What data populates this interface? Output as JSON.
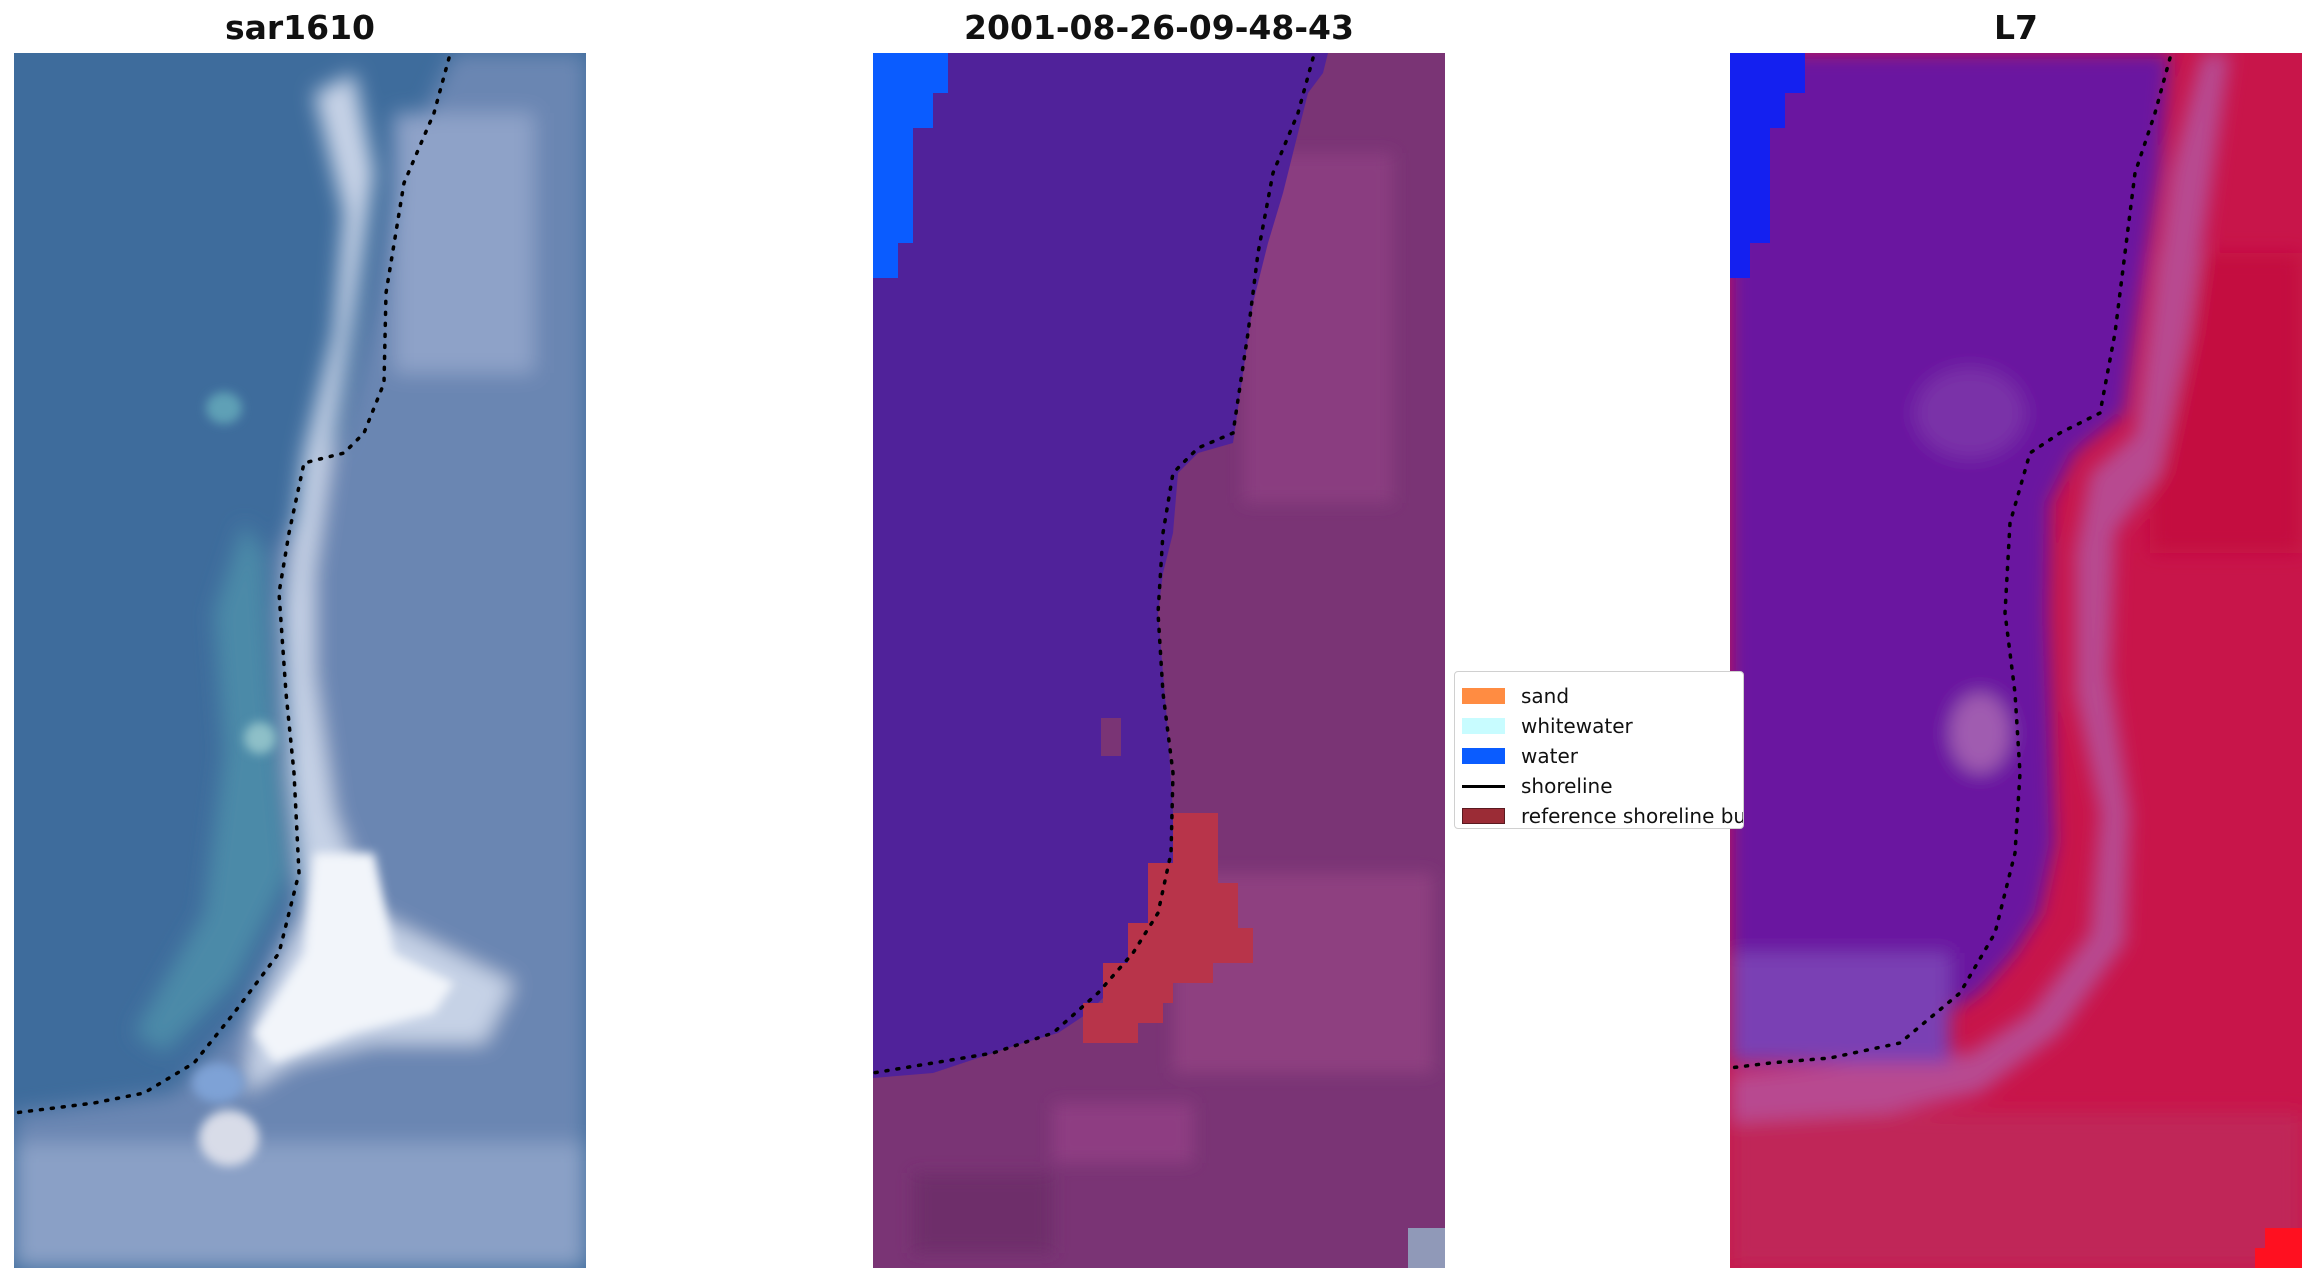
{
  "panels": [
    {
      "title": "sar1610",
      "image": "rgb-satellite"
    },
    {
      "title": "2001-08-26-09-48-43",
      "image": "classified-overlay"
    },
    {
      "title": "L7",
      "image": "mndwi-index"
    }
  ],
  "legend": {
    "entries": [
      {
        "label": "sand",
        "color": "#ff8c42",
        "kind": "patch"
      },
      {
        "label": "whitewater",
        "color": "#c8fcff",
        "kind": "patch"
      },
      {
        "label": "water",
        "color": "#0a5cff",
        "kind": "patch"
      },
      {
        "label": "shoreline",
        "color": "#000000",
        "kind": "line"
      },
      {
        "label": "reference shoreline buffer",
        "color": "#9b2c36",
        "kind": "patch"
      }
    ]
  },
  "colors": {
    "sea_blue": "#3e6c9c",
    "surf_white": "#e6ecf4",
    "land_grey_blue": "#6f88b4",
    "class_water": "#0a5cff",
    "class_sea_purple": "#50229a",
    "class_land_mauve": "#7a3475",
    "class_buffer_red": "#b8344a",
    "index_water": "#6a14a0",
    "index_land": "#c8154a"
  }
}
